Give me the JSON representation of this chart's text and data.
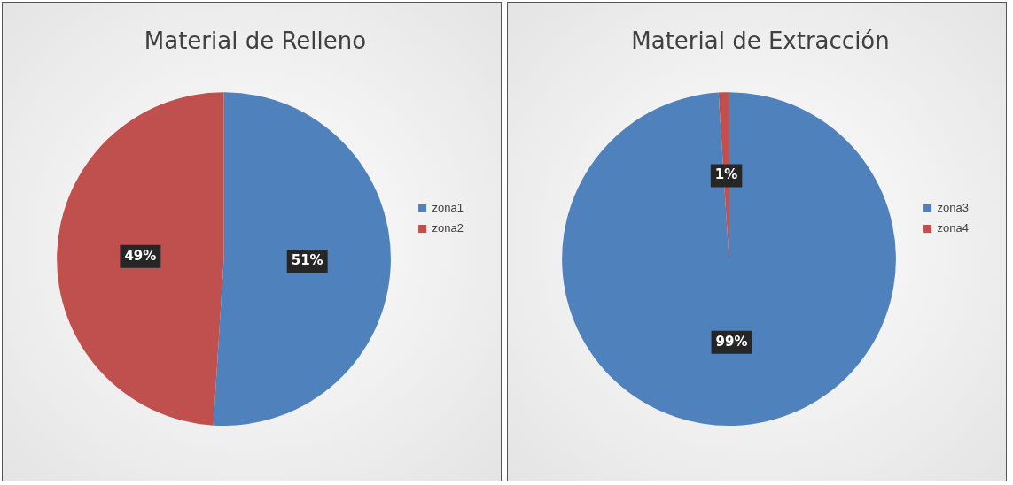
{
  "chart_data": [
    {
      "type": "pie",
      "title": "Material de Relleno",
      "categories": [
        "zona1",
        "zona2"
      ],
      "values": [
        51,
        49
      ],
      "value_labels": [
        "51%",
        "49%"
      ],
      "colors": [
        "#4f81bd",
        "#c0504d"
      ],
      "legend": "right"
    },
    {
      "type": "pie",
      "title": "Material de Extracción",
      "categories": [
        "zona3",
        "zona4"
      ],
      "values": [
        99,
        1
      ],
      "value_labels": [
        "99%",
        "1%"
      ],
      "colors": [
        "#4f81bd",
        "#c0504d"
      ],
      "legend": "right"
    }
  ]
}
